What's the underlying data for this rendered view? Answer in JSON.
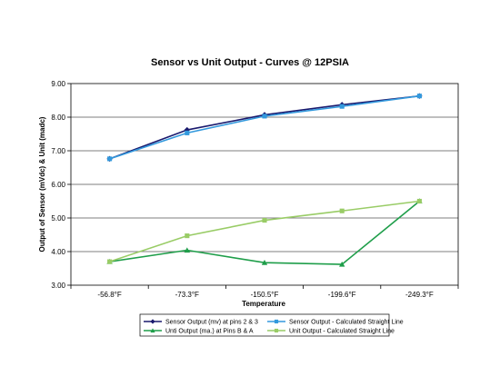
{
  "chart_data": {
    "type": "line",
    "title": "Sensor vs Unit Output - Curves @ 12PSIA",
    "xlabel": "Temperature",
    "ylabel": "Output of Sensor (mVdc) & Unit (madc)",
    "categories": [
      "-56.8°F",
      "-73.3°F",
      "-150.5°F",
      "-199.6°F",
      "-249.3°F"
    ],
    "ylim": [
      3.0,
      9.0
    ],
    "yticks": [
      "3.00",
      "4.00",
      "5.00",
      "6.00",
      "7.00",
      "8.00",
      "9.00"
    ],
    "grid": true,
    "legend_position": "bottom",
    "series": [
      {
        "name": "Sensor Output (mv) at pins 2 & 3",
        "values": [
          6.76,
          7.62,
          8.07,
          8.37,
          8.63
        ],
        "color": "#1a1a6e",
        "marker": "diamond"
      },
      {
        "name": "Sensor Output - Calculated Straight Line",
        "values": [
          6.76,
          7.53,
          8.03,
          8.32,
          8.63
        ],
        "color": "#3399dd",
        "marker": "square"
      },
      {
        "name": "Unti Output (ma.) at Pins B & A",
        "values": [
          3.7,
          4.04,
          3.67,
          3.62,
          5.5
        ],
        "color": "#1f9e4a",
        "marker": "triangle"
      },
      {
        "name": "Unit Output - Calculated Straight Line",
        "values": [
          3.7,
          4.47,
          4.93,
          5.21,
          5.5
        ],
        "color": "#99cc66",
        "marker": "square"
      }
    ]
  }
}
